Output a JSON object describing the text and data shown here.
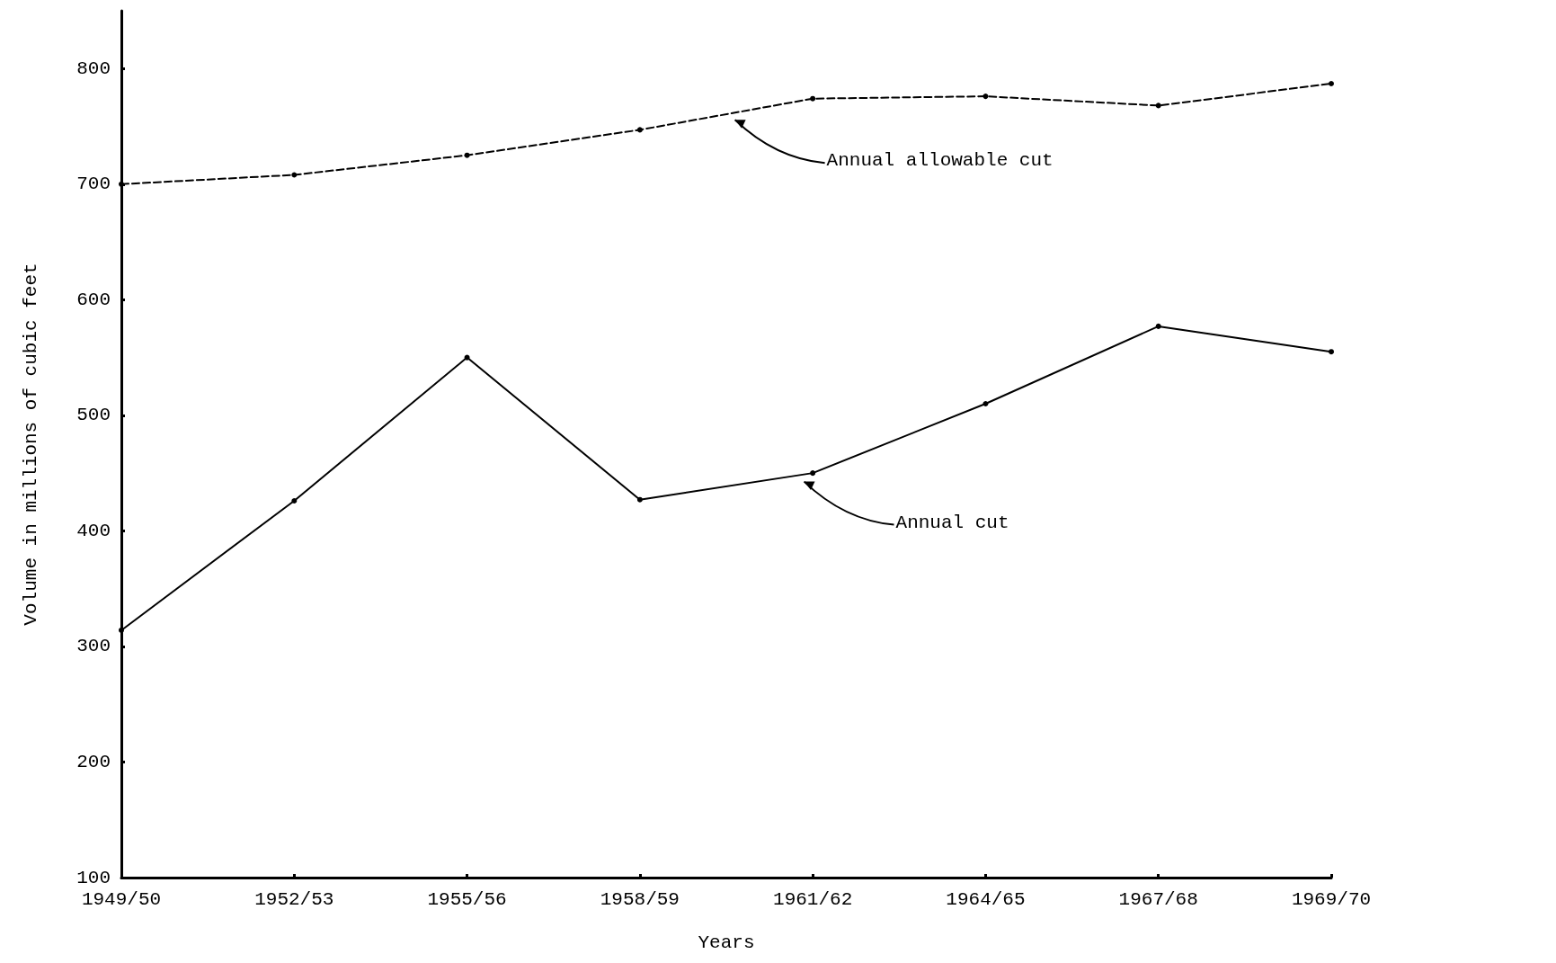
{
  "chart_data": {
    "type": "line",
    "xlabel": "Years",
    "ylabel": "Volume in millions of cubic feet",
    "categories": [
      "1949/50",
      "1952/53",
      "1955/56",
      "1958/59",
      "1961/62",
      "1964/65",
      "1967/68",
      "1969/70"
    ],
    "series": [
      {
        "color": "#000000",
        "line_style": "dashed",
        "values": [
          700,
          708,
          725,
          747,
          774,
          776,
          768,
          787
        ]
      },
      {
        "color": "#000000",
        "line_style": "solid",
        "values": [
          314,
          426,
          550,
          427,
          450,
          510,
          577,
          555
        ]
      }
    ],
    "annotations": [
      "Annual allowable cut",
      "Annual cut"
    ],
    "ylim": [
      100,
      850
    ],
    "yticks": [
      100,
      200,
      300,
      400,
      500,
      600,
      700,
      800
    ],
    "marker": "circle"
  }
}
